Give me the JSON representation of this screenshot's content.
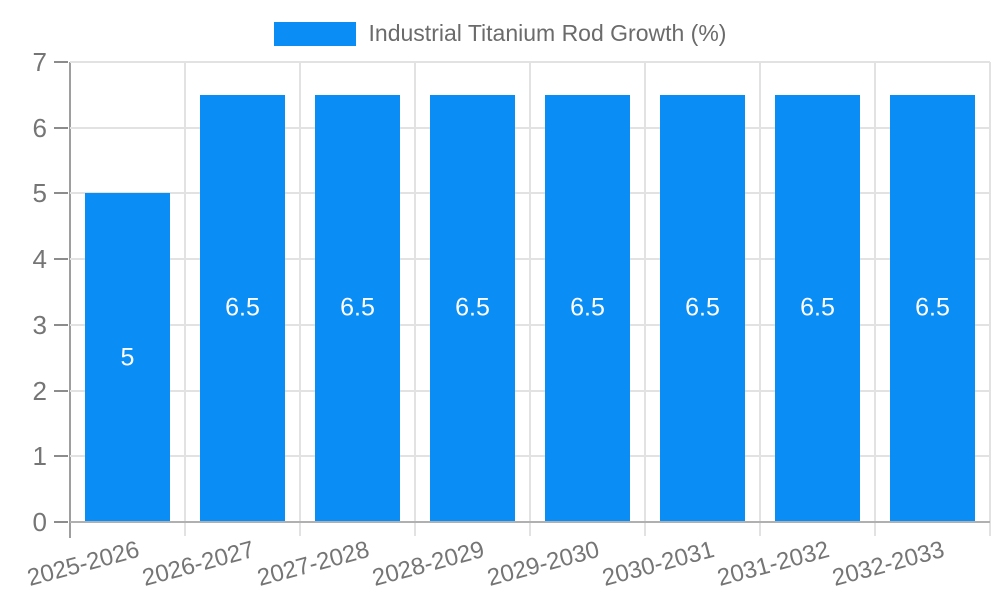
{
  "chart_data": {
    "type": "bar",
    "legend": "Industrial Titanium Rod Growth (%)",
    "legend_position": "top",
    "categories": [
      "2025-2026",
      "2026-2027",
      "2027-2028",
      "2028-2029",
      "2029-2030",
      "2030-2031",
      "2031-2032",
      "2032-2033"
    ],
    "values": [
      5,
      6.5,
      6.5,
      6.5,
      6.5,
      6.5,
      6.5,
      6.5
    ],
    "value_labels": [
      "5",
      "6.5",
      "6.5",
      "6.5",
      "6.5",
      "6.5",
      "6.5",
      "6.5"
    ],
    "ylim": [
      0,
      7
    ],
    "y_ticks": [
      0,
      1,
      2,
      3,
      4,
      5,
      6,
      7
    ],
    "grid": true,
    "x_label_rotation_deg": -15,
    "colors": {
      "bar": "#0a8df5",
      "grid": "#e2e2e2",
      "axis_x": "#b0b0b0",
      "axis_y": "#9e9e9e",
      "tick": "#8c8c8c",
      "tick_label": "#757575",
      "legend_text": "#6b6b6b",
      "bar_label": "#ffffff",
      "background": "#ffffff"
    }
  }
}
